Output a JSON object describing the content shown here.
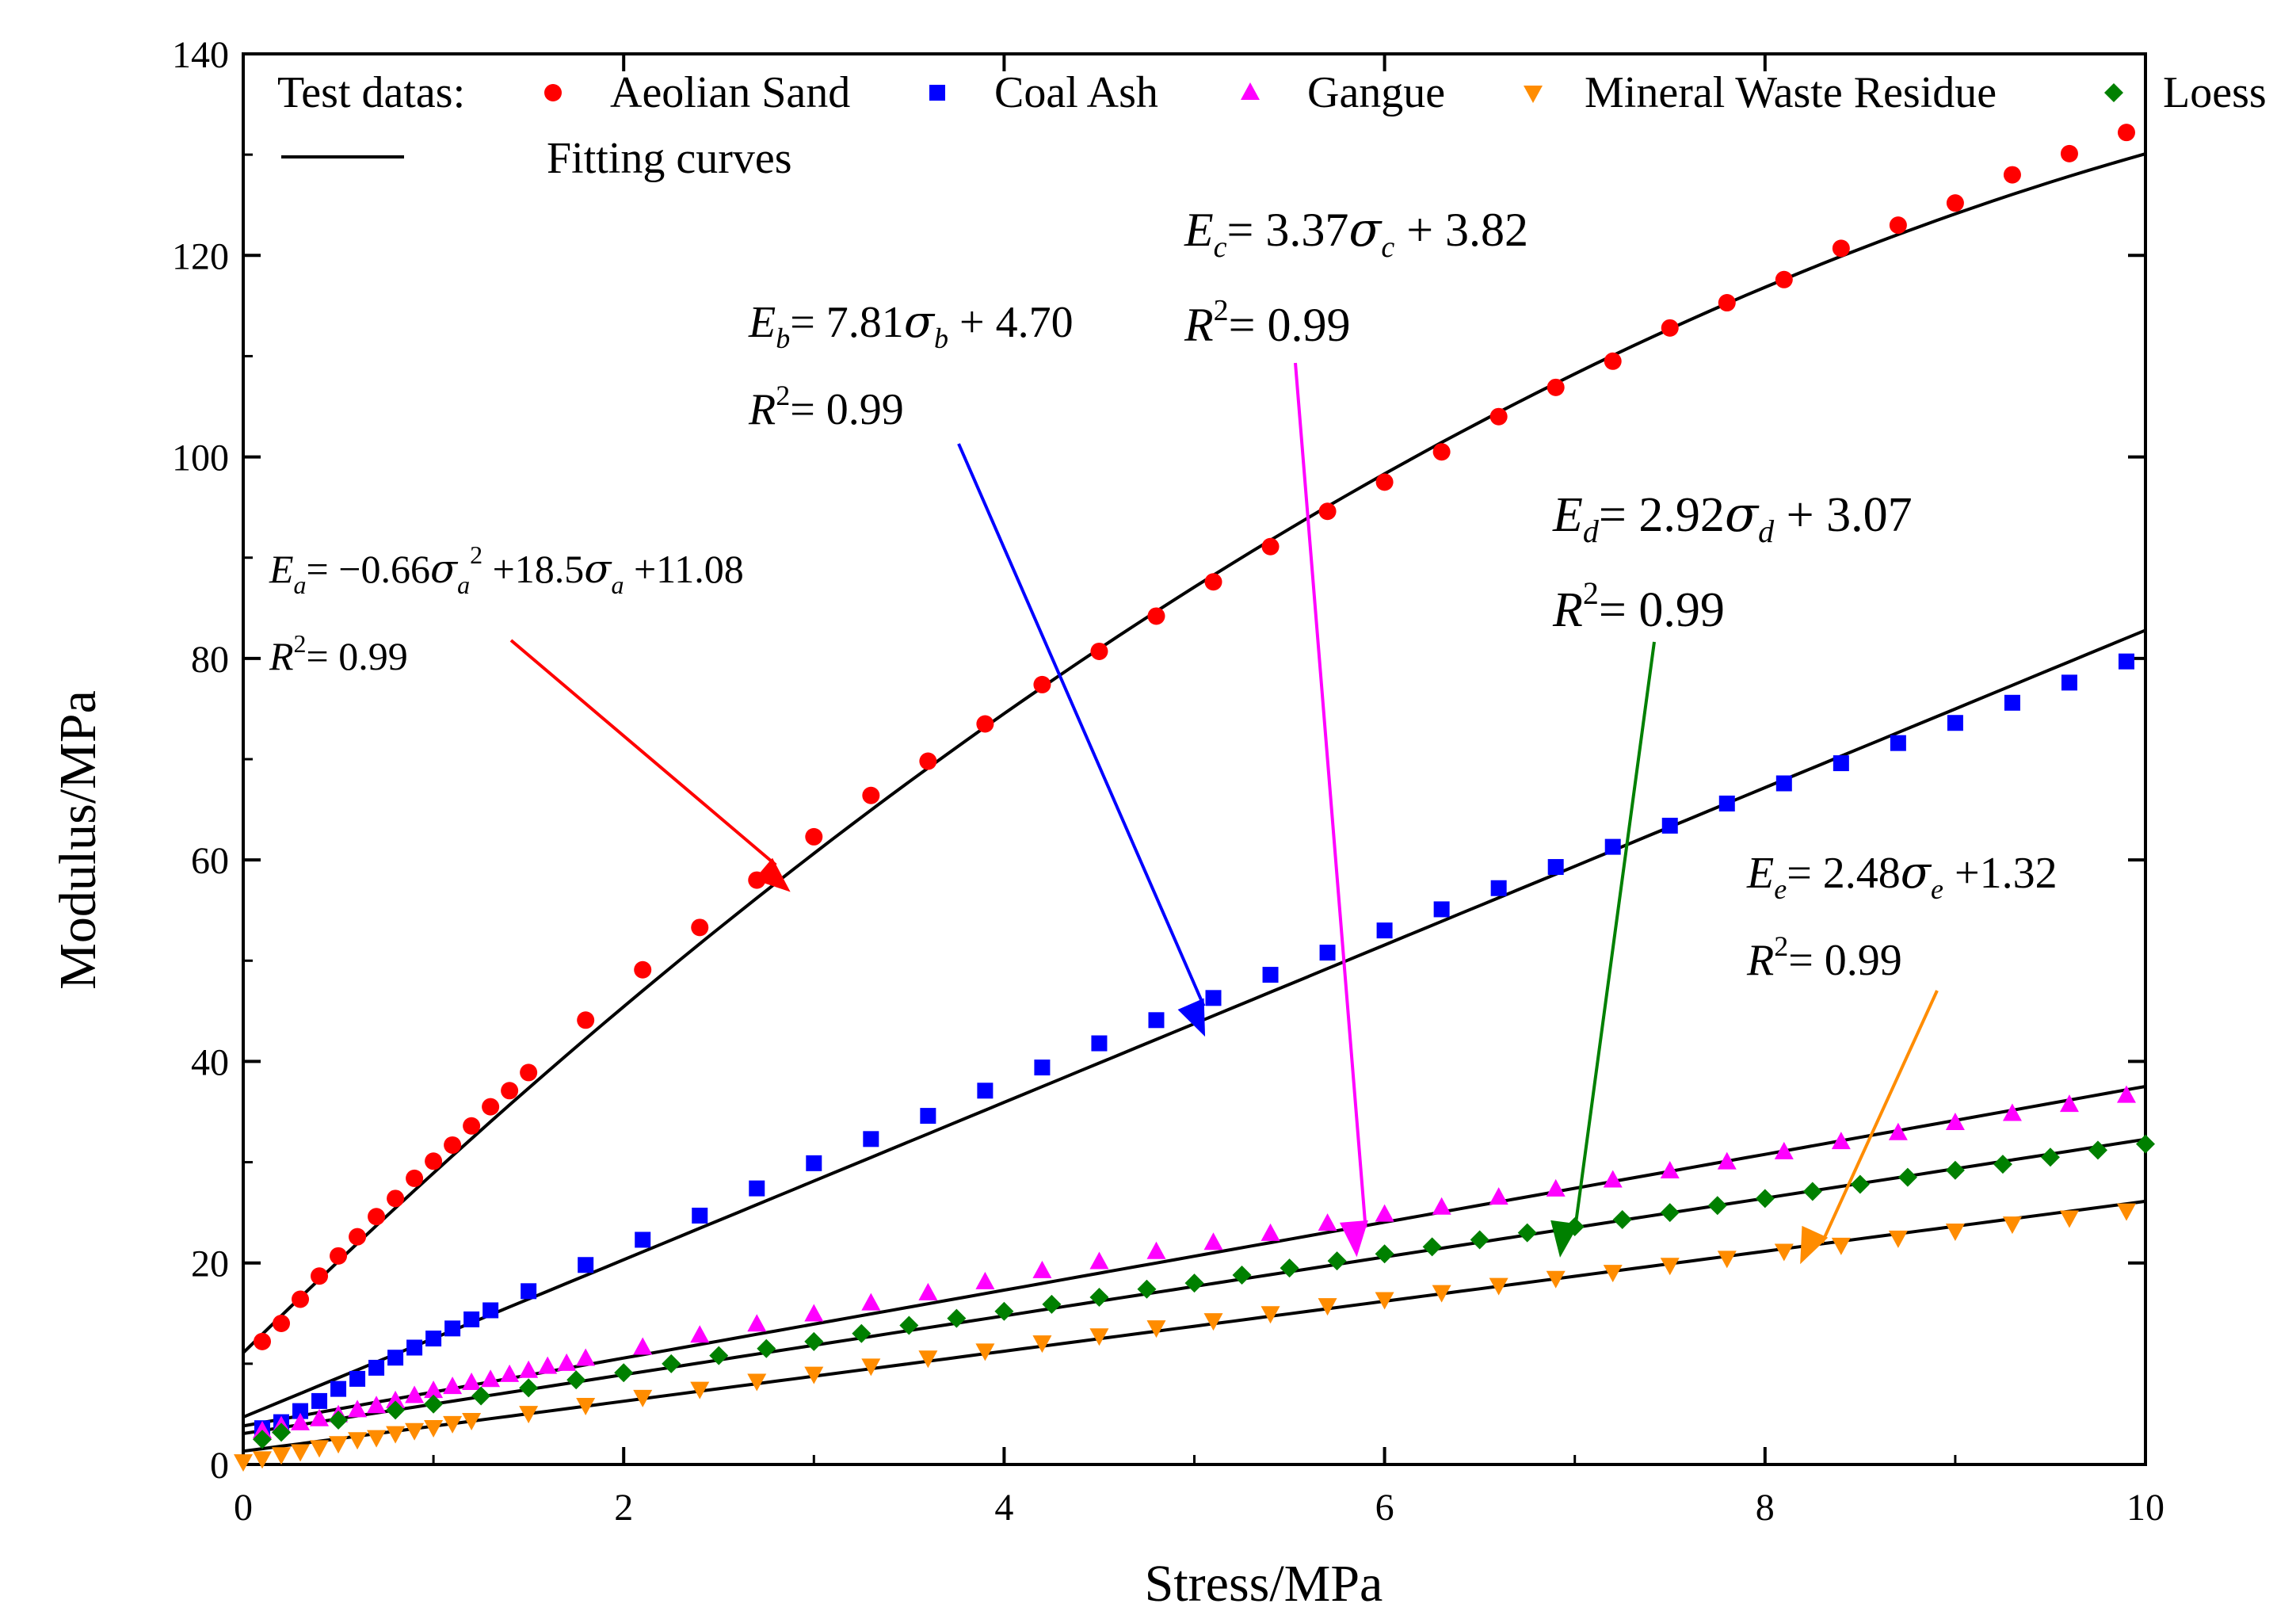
{
  "chart_data": {
    "type": "scatter",
    "xlabel": "Stress/MPa",
    "ylabel": "Modulus/MPa",
    "xlim": [
      0,
      10
    ],
    "ylim": [
      0,
      140
    ],
    "xticks": [
      0,
      2,
      4,
      6,
      8,
      10
    ],
    "yticks": [
      0,
      20,
      40,
      60,
      80,
      100,
      120,
      140
    ],
    "xtick_labels": [
      "0",
      "2",
      "4",
      "6",
      "8",
      "10"
    ],
    "ytick_labels": [
      "0",
      "20",
      "40",
      "60",
      "80",
      "100",
      "120",
      "140"
    ],
    "grid": false,
    "legend": {
      "placement": "top",
      "test_label": "Test datas:",
      "fit_label": "Fitting curves"
    },
    "series": [
      {
        "name": "Aeolian Sand",
        "marker": "circle",
        "color": "#ff0000",
        "x": [
          0.1,
          0.2,
          0.3,
          0.4,
          0.5,
          0.6,
          0.7,
          0.8,
          0.9,
          1.0,
          1.1,
          1.2,
          1.3,
          1.4,
          1.5,
          1.8,
          2.1,
          2.4,
          2.7,
          3.0,
          3.3,
          3.6,
          3.9,
          4.2,
          4.5,
          4.8,
          5.1,
          5.4,
          5.7,
          6.0,
          6.3,
          6.6,
          6.9,
          7.2,
          7.5,
          7.8,
          8.1,
          8.4,
          8.7,
          9.0,
          9.3,
          9.6,
          9.9
        ],
        "y": [
          12.2,
          14.0,
          16.4,
          18.7,
          20.7,
          22.6,
          24.6,
          26.4,
          28.4,
          30.1,
          31.7,
          33.6,
          35.5,
          37.1,
          38.9,
          44.1,
          49.1,
          53.3,
          58.0,
          62.3,
          66.4,
          69.8,
          73.5,
          77.4,
          80.7,
          84.2,
          87.6,
          91.1,
          94.6,
          97.5,
          100.5,
          104.0,
          106.9,
          109.5,
          112.8,
          115.3,
          117.6,
          120.7,
          123.0,
          125.2,
          128.0,
          130.1,
          132.2
        ]
      },
      {
        "name": "Coal Ash",
        "marker": "square",
        "color": "#0000ff",
        "x": [
          0.1,
          0.2,
          0.3,
          0.4,
          0.5,
          0.6,
          0.7,
          0.8,
          0.9,
          1.0,
          1.1,
          1.2,
          1.3,
          1.5,
          1.8,
          2.1,
          2.4,
          2.7,
          3.0,
          3.3,
          3.6,
          3.9,
          4.2,
          4.5,
          4.8,
          5.1,
          5.4,
          5.7,
          6.0,
          6.3,
          6.6,
          6.9,
          7.2,
          7.5,
          7.8,
          8.1,
          8.4,
          8.7,
          9.0,
          9.3,
          9.6,
          9.9
        ],
        "y": [
          3.6,
          4.2,
          5.3,
          6.3,
          7.5,
          8.5,
          9.6,
          10.6,
          11.6,
          12.5,
          13.5,
          14.4,
          15.3,
          17.2,
          19.8,
          22.3,
          24.7,
          27.4,
          29.9,
          32.3,
          34.6,
          37.1,
          39.4,
          41.8,
          44.1,
          46.3,
          48.6,
          50.8,
          53.0,
          55.1,
          57.2,
          59.3,
          61.3,
          63.4,
          65.6,
          67.6,
          69.6,
          71.6,
          73.6,
          75.6,
          77.6,
          79.7
        ]
      },
      {
        "name": "Gangue",
        "marker": "triangle-up",
        "color": "#ff00ff",
        "x": [
          0.1,
          0.2,
          0.3,
          0.4,
          0.5,
          0.6,
          0.7,
          0.8,
          0.9,
          1.0,
          1.1,
          1.2,
          1.3,
          1.4,
          1.5,
          1.6,
          1.7,
          1.8,
          2.1,
          2.4,
          2.7,
          3.0,
          3.3,
          3.6,
          3.9,
          4.2,
          4.5,
          4.8,
          5.1,
          5.4,
          5.7,
          6.0,
          6.3,
          6.6,
          6.9,
          7.2,
          7.5,
          7.8,
          8.1,
          8.4,
          8.7,
          9.0,
          9.3,
          9.6,
          9.9
        ],
        "y": [
          3.3,
          3.8,
          4.1,
          4.5,
          4.9,
          5.4,
          5.8,
          6.3,
          6.8,
          7.3,
          7.7,
          8.1,
          8.4,
          8.9,
          9.3,
          9.7,
          10.0,
          10.5,
          11.6,
          12.8,
          13.9,
          14.9,
          16.0,
          17.0,
          18.1,
          19.2,
          20.1,
          21.1,
          22.0,
          22.9,
          23.9,
          24.8,
          25.5,
          26.5,
          27.3,
          28.2,
          29.1,
          30.0,
          31.0,
          32.0,
          32.9,
          33.9,
          34.8,
          35.7,
          36.6
        ]
      },
      {
        "name": "Mineral Waste Residue",
        "marker": "triangle-down",
        "color": "#ff8c00",
        "x": [
          0.0,
          0.1,
          0.2,
          0.3,
          0.4,
          0.5,
          0.6,
          0.7,
          0.8,
          0.9,
          1.0,
          1.1,
          1.2,
          1.5,
          1.8,
          2.1,
          2.4,
          2.7,
          3.0,
          3.3,
          3.6,
          3.9,
          4.2,
          4.5,
          4.8,
          5.1,
          5.4,
          5.7,
          6.0,
          6.3,
          6.6,
          6.9,
          7.2,
          7.5,
          7.8,
          8.1,
          8.4,
          8.7,
          9.0,
          9.3,
          9.6,
          9.9
        ],
        "y": [
          0.3,
          0.6,
          1.0,
          1.3,
          1.7,
          2.1,
          2.5,
          2.7,
          3.1,
          3.4,
          3.7,
          4.1,
          4.4,
          5.1,
          5.9,
          6.7,
          7.5,
          8.3,
          9.0,
          9.8,
          10.6,
          11.3,
          12.1,
          12.8,
          13.6,
          14.3,
          15.0,
          15.8,
          16.4,
          17.1,
          17.8,
          18.5,
          19.1,
          19.8,
          20.5,
          21.2,
          21.8,
          22.5,
          23.2,
          23.9,
          24.5,
          25.2
        ]
      },
      {
        "name": "Loess",
        "marker": "diamond",
        "color": "#008000",
        "x": [
          0.1,
          0.2,
          0.5,
          0.8,
          1.0,
          1.25,
          1.5,
          1.75,
          2.0,
          2.25,
          2.5,
          2.75,
          3.0,
          3.25,
          3.5,
          3.75,
          4.0,
          4.25,
          4.5,
          4.75,
          5.0,
          5.25,
          5.5,
          5.75,
          6.0,
          6.25,
          6.5,
          6.75,
          7.0,
          7.25,
          7.5,
          7.75,
          8.0,
          8.25,
          8.5,
          8.75,
          9.0,
          9.25,
          9.5,
          9.75,
          10.0
        ],
        "y": [
          2.5,
          3.2,
          4.4,
          5.4,
          6.0,
          6.8,
          7.6,
          8.4,
          9.1,
          10.0,
          10.8,
          11.5,
          12.2,
          13.0,
          13.8,
          14.5,
          15.2,
          15.9,
          16.6,
          17.4,
          18.0,
          18.8,
          19.5,
          20.2,
          20.9,
          21.6,
          22.3,
          23.0,
          23.6,
          24.3,
          25.0,
          25.7,
          26.4,
          27.1,
          27.8,
          28.5,
          29.2,
          29.8,
          30.5,
          31.2,
          31.8
        ]
      }
    ],
    "fits": [
      {
        "series": "Aeolian Sand",
        "a": -0.66,
        "b": 18.5,
        "c": 11.08
      },
      {
        "series": "Coal Ash",
        "a": 0,
        "b": 7.81,
        "c": 4.7
      },
      {
        "series": "Gangue",
        "a": 0,
        "b": 3.37,
        "c": 3.82
      },
      {
        "series": "Mineral Waste Residue",
        "a": 0,
        "b": 2.48,
        "c": 1.32
      },
      {
        "series": "Loess",
        "a": 0,
        "b": 2.92,
        "c": 3.07
      }
    ],
    "annotations": [
      {
        "id": "a",
        "letter": "a",
        "color": "#ff0000",
        "rhs": "= −0.66",
        "sq": "2",
        "rhs2": " +18.5",
        "rhs3": " +11.08",
        "r2": "= 0.99"
      },
      {
        "id": "b",
        "letter": "b",
        "color": "#0000ff",
        "rhs": "= 7.81",
        "rhs2": " + 4.70",
        "r2": "= 0.99"
      },
      {
        "id": "c",
        "letter": "c",
        "color": "#ff00ff",
        "rhs": "= 3.37",
        "rhs2": " + 3.82",
        "r2": "= 0.99"
      },
      {
        "id": "d",
        "letter": "d",
        "color": "#008000",
        "rhs": "= 2.92",
        "rhs2": " + 3.07",
        "r2": "= 0.99"
      },
      {
        "id": "e",
        "letter": "e",
        "color": "#ff8c00",
        "rhs": "= 2.48",
        "rhs2": " +1.32",
        "r2": "= 0.99"
      }
    ]
  }
}
